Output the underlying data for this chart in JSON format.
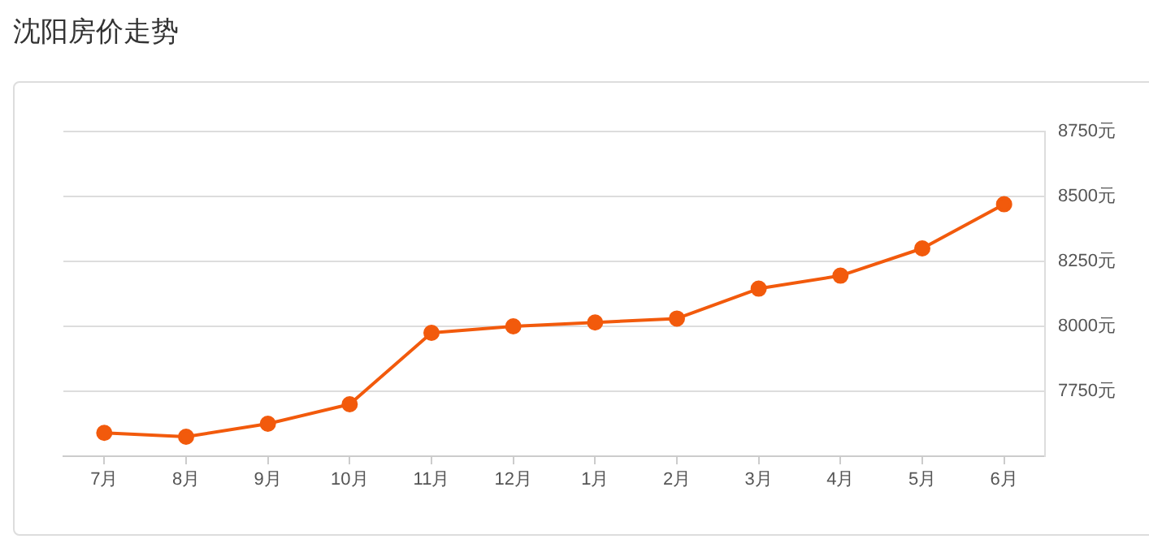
{
  "chart_data": {
    "type": "line",
    "title": "沈阳房价走势",
    "categories": [
      "7月",
      "8月",
      "9月",
      "10月",
      "11月",
      "12月",
      "1月",
      "2月",
      "3月",
      "4月",
      "5月",
      "6月"
    ],
    "series": [
      {
        "color": "#f25a0c",
        "values": [
          7590,
          7575,
          7625,
          7700,
          7975,
          8000,
          8015,
          8030,
          8145,
          8195,
          8300,
          8470
        ]
      }
    ],
    "ylim": [
      7500,
      8750
    ],
    "yticks": [
      {
        "value": 7750,
        "label": "7750元"
      },
      {
        "value": 8000,
        "label": "8000元"
      },
      {
        "value": 8250,
        "label": "8250元"
      },
      {
        "value": 8500,
        "label": "8500元"
      },
      {
        "value": 8750,
        "label": "8750元"
      }
    ],
    "grid": "y",
    "legend": false,
    "marker": "circle",
    "line_style": "solid"
  }
}
